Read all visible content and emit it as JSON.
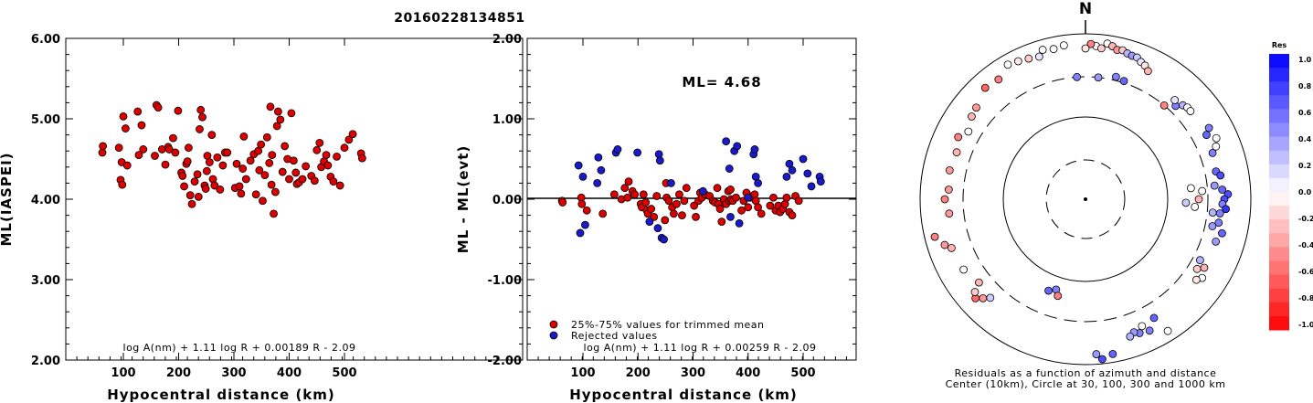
{
  "title": "20160228134851",
  "charts": {
    "left": {
      "ylabel": "ML(IASPEI)",
      "xlabel": "Hypocentral distance (km)",
      "formula": "log A(nm) + 1.11 log R + 0.00189 R - 2.09",
      "yticks": [
        "2.00",
        "3.00",
        "4.00",
        "5.00",
        "6.00"
      ],
      "xticks": [
        "100",
        "200",
        "300",
        "400",
        "500"
      ]
    },
    "middle": {
      "ylabel": "ML - ML(evt)",
      "xlabel": "Hypocentral distance (km)",
      "formula": "log A(nm) + 1.11 log R + 0.00259 R - 2.09",
      "ml_label": "ML= 4.68",
      "legend_red": "25%-75% values for trimmed mean",
      "legend_blue": "Rejected values",
      "yticks": [
        "-2.00",
        "-1.00",
        "0.00",
        "1.00",
        "2.00"
      ],
      "xticks": [
        "100",
        "200",
        "300",
        "400",
        "500"
      ]
    },
    "polar": {
      "north_label": "N",
      "caption1": "Residuals as a function of azimuth and distance",
      "caption2": "Center (10km), Circle at 30, 100, 300 and 1000 km",
      "colorbar_title": "Res",
      "colorbar_ticks": [
        "1.0",
        "0.8",
        "0.6",
        "0.4",
        "0.2",
        "0.0",
        "-0.2",
        "-0.4",
        "-0.6",
        "-0.8",
        "-1.0"
      ]
    }
  },
  "colors": {
    "accepted": "#dd0000",
    "rejected": "#1a1acc",
    "edge": "#000000"
  },
  "chart_data": [
    {
      "type": "scatter",
      "title": "20160228134851",
      "xlabel": "Hypocentral distance (km)",
      "ylabel": "ML(IASPEI)",
      "xlim": [
        0,
        600
      ],
      "ylim": [
        2.0,
        6.0
      ],
      "x": [
        62,
        63,
        92,
        95,
        97,
        98,
        100,
        104,
        107,
        126,
        128,
        133,
        136,
        157,
        160,
        163,
        170,
        176,
        181,
        183,
        190,
        194,
        199,
        205,
        207,
        210,
        214,
        216,
        218,
        221,
        224,
        229,
        234,
        236,
        238,
        240,
        243,
        247,
        249,
        251,
        252,
        256,
        260,
        262,
        265,
        270,
        275,
        280,
        284,
        288,
        302,
        305,
        310,
        313,
        316,
        318,
        322,
        330,
        336,
        340,
        344,
        346,
        349,
        352,
        356,
        360,
        364,
        366,
        368,
        369,
        372,
        375,
        378,
        380,
        384,
        388,
        392,
        397,
        400,
        404,
        408,
        412,
        414,
        418,
        424,
        430,
        440,
        446,
        450,
        455,
        458,
        463,
        467,
        470,
        475,
        480,
        486,
        492,
        500,
        508,
        515,
        530,
        532
      ],
      "y": [
        4.58,
        4.66,
        4.64,
        4.24,
        4.46,
        4.18,
        5.03,
        4.88,
        4.42,
        5.09,
        4.55,
        4.92,
        4.62,
        4.54,
        5.17,
        5.14,
        4.62,
        4.43,
        4.65,
        4.62,
        4.76,
        4.58,
        5.1,
        4.33,
        4.29,
        4.16,
        4.44,
        4.47,
        4.64,
        4.05,
        3.94,
        4.22,
        4.31,
        4.03,
        4.87,
        5.11,
        5.02,
        4.17,
        4.13,
        4.35,
        4.54,
        4.46,
        4.8,
        4.25,
        4.17,
        4.52,
        4.12,
        4.42,
        4.58,
        4.58,
        4.14,
        4.44,
        4.16,
        4.07,
        4.38,
        4.78,
        4.25,
        4.48,
        4.56,
        4.06,
        4.6,
        4.36,
        4.68,
        3.98,
        4.3,
        4.77,
        4.45,
        5.15,
        4.18,
        4.55,
        3.82,
        4.09,
        4.91,
        5.09,
        4.99,
        4.34,
        4.66,
        4.5,
        4.25,
        5.07,
        4.48,
        4.33,
        4.19,
        4.21,
        4.25,
        4.41,
        4.29,
        4.23,
        4.61,
        4.7,
        4.4,
        4.47,
        4.55,
        4.42,
        4.28,
        4.22,
        4.53,
        4.17,
        4.64,
        4.74,
        4.81,
        4.57,
        4.51
      ]
    },
    {
      "type": "scatter",
      "xlabel": "Hypocentral distance (km)",
      "ylabel": "ML - ML(evt)",
      "xlim": [
        0,
        600
      ],
      "ylim": [
        -2.0,
        2.0
      ],
      "series": [
        {
          "name": "25%-75% values for trimmed mean",
          "x": [
            62,
            63,
            97,
            98,
            107,
            136,
            157,
            170,
            176,
            181,
            183,
            190,
            194,
            205,
            207,
            210,
            214,
            216,
            218,
            224,
            229,
            234,
            249,
            251,
            252,
            256,
            262,
            265,
            270,
            275,
            280,
            284,
            288,
            302,
            305,
            310,
            313,
            316,
            322,
            330,
            336,
            340,
            344,
            346,
            349,
            352,
            356,
            360,
            364,
            366,
            368,
            369,
            372,
            378,
            388,
            392,
            397,
            400,
            404,
            408,
            412,
            414,
            418,
            424,
            440,
            446,
            450,
            455,
            458,
            463,
            467,
            470,
            475,
            480,
            486,
            492
          ],
          "y": [
            -0.02,
            -0.04,
            0.02,
            -0.06,
            -0.14,
            -0.18,
            0.06,
            0.0,
            0.14,
            0.02,
            0.22,
            0.1,
            0.06,
            -0.06,
            -0.1,
            0.06,
            -0.04,
            -0.14,
            -0.18,
            -0.12,
            -0.22,
            0.04,
            -0.26,
            0.2,
            0.02,
            -0.02,
            -0.1,
            -0.18,
            -0.06,
            0.06,
            -0.2,
            -0.02,
            0.14,
            -0.08,
            -0.22,
            -0.02,
            0.08,
            0.02,
            0.06,
            0.04,
            -0.02,
            -0.04,
            0.14,
            -0.06,
            -0.12,
            -0.28,
            0.0,
            -0.06,
            0.1,
            -0.02,
            0.12,
            0.0,
            -0.02,
            0.02,
            -0.14,
            -0.02,
            0.08,
            -0.1,
            0.02,
            0.04,
            0.06,
            -0.02,
            -0.1,
            -0.18,
            -0.08,
            0.02,
            -0.14,
            -0.08,
            -0.16,
            -0.12,
            -0.06,
            0.02,
            -0.16,
            -0.2,
            0.04,
            -0.02
          ]
        },
        {
          "name": "Rejected values",
          "x": [
            92,
            95,
            100,
            104,
            126,
            128,
            133,
            160,
            163,
            199,
            221,
            236,
            238,
            240,
            243,
            247,
            260,
            318,
            360,
            366,
            368,
            375,
            380,
            384,
            400,
            410,
            412,
            414,
            418,
            470,
            475,
            480,
            500,
            508,
            515,
            530,
            532
          ],
          "y": [
            0.42,
            -0.42,
            0.28,
            -0.32,
            0.2,
            0.52,
            0.36,
            0.58,
            0.62,
            0.58,
            -0.28,
            -0.36,
            0.56,
            0.48,
            -0.48,
            -0.5,
            0.2,
            0.1,
            0.72,
            0.38,
            -0.22,
            0.6,
            0.66,
            -0.3,
            0.02,
            0.56,
            0.62,
            0.28,
            0.2,
            0.28,
            0.44,
            0.36,
            0.5,
            0.32,
            0.16,
            0.28,
            0.22
          ]
        }
      ],
      "reference_line": 0.0
    }
  ]
}
